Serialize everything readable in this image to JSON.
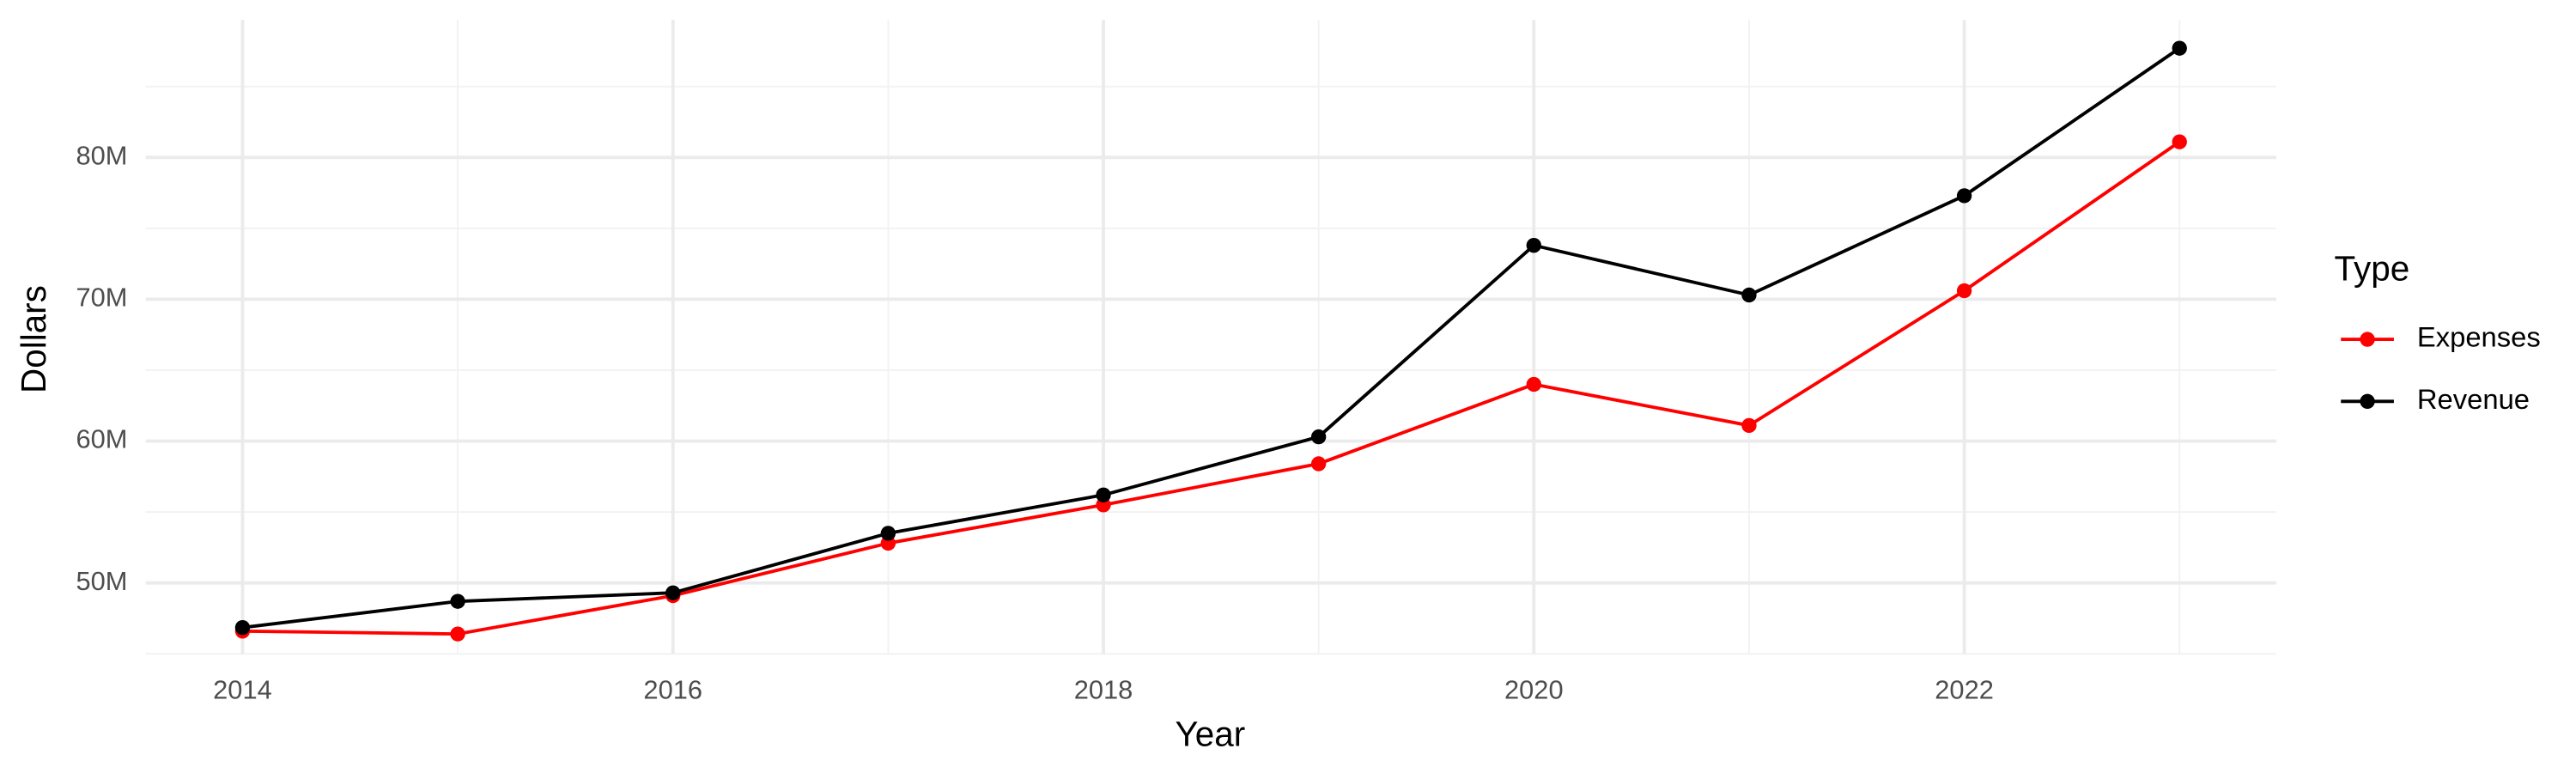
{
  "chart_data": {
    "type": "line",
    "title": null,
    "x_label": "Year",
    "y_label": "Dollars",
    "legend_title": "Type",
    "legend": "right",
    "x": [
      2014,
      2015,
      2016,
      2017,
      2018,
      2019,
      2020,
      2021,
      2022,
      2023
    ],
    "series": [
      {
        "name": "Expenses",
        "color": "#ff0000",
        "values": [
          46600000,
          46400000,
          49100000,
          52800000,
          55500000,
          58400000,
          64000000,
          61100000,
          70600000,
          81100000
        ]
      },
      {
        "name": "Revenue",
        "color": "#000000",
        "values": [
          46850000,
          48700000,
          49300000,
          53500000,
          56200000,
          60300000,
          73800000,
          70300000,
          77300000,
          87700000
        ]
      }
    ],
    "xlim": [
      2013.55,
      2023.45
    ],
    "xticks": [
      2014,
      2016,
      2018,
      2020,
      2022
    ],
    "ylim": [
      45000000,
      89700000
    ],
    "yticks": [
      {
        "value": 50000000,
        "label": "50M"
      },
      {
        "value": 60000000,
        "label": "60M"
      },
      {
        "value": 70000000,
        "label": "70M"
      },
      {
        "value": 80000000,
        "label": "80M"
      }
    ],
    "grid": true
  }
}
